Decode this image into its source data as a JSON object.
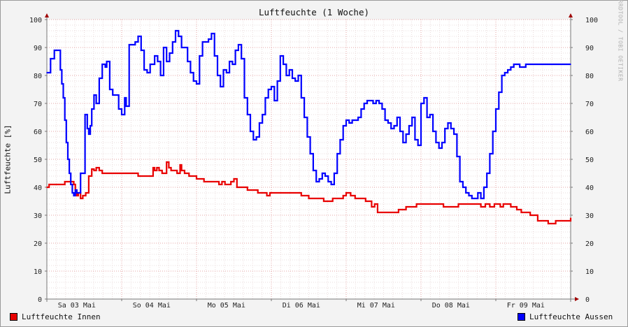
{
  "chart_data": {
    "type": "line",
    "title": "Luftfeuchte (1 Woche)",
    "ylabel": "Luftfeuchte [%]",
    "ylim": [
      0,
      100
    ],
    "yticks": [
      0,
      10,
      20,
      30,
      40,
      50,
      60,
      70,
      80,
      90,
      100
    ],
    "xlim": [
      0,
      7
    ],
    "x_unit": "days",
    "xtick_labels": [
      "Sa 03 Mai",
      "So 04 Mai",
      "Mo 05 Mai",
      "Di 06 Mai",
      "Mi 07 Mai",
      "Do 08 Mai",
      "Fr 09 Mai"
    ],
    "xtick_positions": [
      0.4,
      1.4,
      2.4,
      3.4,
      4.4,
      5.4,
      6.4
    ],
    "grid": true,
    "legend_position": "bottom",
    "watermark": "RRDTOOL / TOBI OETIKER",
    "series": [
      {
        "name": "Luftfeuchte Innen",
        "color": "#e80000",
        "x": [
          0,
          0.03,
          0.08,
          0.18,
          0.24,
          0.33,
          0.36,
          0.38,
          0.4,
          0.42,
          0.45,
          0.48,
          0.52,
          0.56,
          0.6,
          0.63,
          0.66,
          0.7,
          0.74,
          0.77,
          0.8,
          0.83,
          0.86,
          0.9,
          1,
          1.15,
          1.22,
          1.38,
          1.42,
          1.44,
          1.47,
          1.5,
          1.54,
          1.58,
          1.6,
          1.63,
          1.66,
          1.7,
          1.74,
          1.78,
          1.8,
          1.84,
          1.9,
          2,
          2.1,
          2.2,
          2.26,
          2.3,
          2.34,
          2.38,
          2.42,
          2.46,
          2.5,
          2.54,
          2.58,
          2.62,
          2.68,
          2.75,
          2.82,
          2.88,
          2.94,
          2.98,
          3.05,
          3.2,
          3.33,
          3.4,
          3.5,
          3.56,
          3.6,
          3.7,
          3.76,
          3.82,
          3.9,
          3.96,
          4,
          4.06,
          4.12,
          4.2,
          4.26,
          4.34,
          4.38,
          4.42,
          4.46,
          4.5,
          4.56,
          4.6,
          4.7,
          4.8,
          4.86,
          4.94,
          5.1,
          5.2,
          5.3,
          5.5,
          5.6,
          5.7,
          5.8,
          5.86,
          5.92,
          5.98,
          6.06,
          6.1,
          6.2,
          6.28,
          6.34,
          6.4,
          6.46,
          6.56,
          6.62,
          6.7,
          6.8,
          6.9,
          6.96,
          7
        ],
        "values": [
          40,
          41,
          41,
          41,
          42,
          42,
          41,
          39,
          37,
          38,
          36,
          37,
          38,
          44,
          46.5,
          46,
          47,
          46,
          45,
          45,
          45,
          45,
          45,
          45,
          45,
          45,
          44,
          44,
          47,
          46,
          47,
          46,
          45,
          45,
          49,
          47,
          46,
          46,
          45,
          48,
          46,
          45,
          44,
          43,
          42,
          42,
          42,
          41,
          42,
          41,
          41,
          42,
          43,
          40,
          40,
          40,
          39,
          39,
          38,
          38,
          37,
          38,
          38,
          38,
          38,
          37,
          36,
          36,
          36,
          35,
          35,
          36,
          36,
          37,
          38,
          37,
          36,
          36,
          35,
          33,
          34,
          31,
          31,
          31,
          31,
          31,
          32,
          33,
          33,
          34,
          34,
          34,
          33,
          34,
          34,
          34,
          33,
          34,
          33,
          34,
          33,
          34,
          33,
          32,
          31,
          31,
          30,
          28,
          28,
          27,
          28,
          28,
          28,
          29
        ]
      },
      {
        "name": "Luftfeuchte Aussen",
        "color": "#0000ff",
        "x": [
          0,
          0.05,
          0.1,
          0.14,
          0.18,
          0.2,
          0.22,
          0.24,
          0.26,
          0.28,
          0.3,
          0.32,
          0.34,
          0.36,
          0.38,
          0.4,
          0.42,
          0.45,
          0.48,
          0.51,
          0.54,
          0.56,
          0.58,
          0.6,
          0.63,
          0.66,
          0.7,
          0.74,
          0.78,
          0.8,
          0.84,
          0.88,
          0.92,
          0.96,
          1,
          1.04,
          1.06,
          1.1,
          1.14,
          1.18,
          1.22,
          1.26,
          1.3,
          1.34,
          1.38,
          1.4,
          1.44,
          1.48,
          1.52,
          1.56,
          1.6,
          1.64,
          1.68,
          1.72,
          1.76,
          1.8,
          1.84,
          1.88,
          1.92,
          1.96,
          2,
          2.04,
          2.08,
          2.12,
          2.16,
          2.2,
          2.24,
          2.28,
          2.32,
          2.36,
          2.4,
          2.44,
          2.48,
          2.52,
          2.56,
          2.6,
          2.64,
          2.68,
          2.72,
          2.76,
          2.8,
          2.84,
          2.88,
          2.92,
          2.96,
          3,
          3.04,
          3.08,
          3.12,
          3.16,
          3.2,
          3.24,
          3.28,
          3.32,
          3.36,
          3.4,
          3.44,
          3.48,
          3.52,
          3.56,
          3.6,
          3.64,
          3.68,
          3.72,
          3.76,
          3.8,
          3.84,
          3.88,
          3.92,
          3.96,
          4,
          4.04,
          4.08,
          4.12,
          4.16,
          4.2,
          4.24,
          4.28,
          4.32,
          4.36,
          4.4,
          4.44,
          4.48,
          4.52,
          4.56,
          4.6,
          4.64,
          4.68,
          4.72,
          4.76,
          4.8,
          4.84,
          4.88,
          4.92,
          4.96,
          5,
          5.04,
          5.08,
          5.12,
          5.16,
          5.2,
          5.24,
          5.28,
          5.32,
          5.36,
          5.4,
          5.44,
          5.48,
          5.52,
          5.56,
          5.6,
          5.64,
          5.68,
          5.72,
          5.76,
          5.8,
          5.84,
          5.88,
          5.92,
          5.96,
          6,
          6.04,
          6.08,
          6.12,
          6.16,
          6.2,
          6.24,
          6.28,
          6.32,
          6.36,
          6.4,
          6.44,
          6.48,
          6.52,
          6.56,
          6.6,
          6.64,
          6.68,
          6.72,
          6.76,
          6.8,
          6.84,
          6.88,
          6.92,
          6.96,
          7
        ],
        "values": [
          81,
          86,
          89,
          89,
          82,
          77,
          72,
          64,
          56,
          50,
          45,
          41,
          38,
          37,
          39,
          38,
          38,
          45,
          45,
          66,
          61,
          59,
          62,
          68,
          73,
          70,
          79,
          84,
          83,
          85,
          75,
          73,
          73,
          68,
          66,
          72,
          69,
          91,
          91,
          92,
          94,
          89,
          82,
          81,
          84,
          84,
          87,
          85,
          80,
          90,
          85,
          88,
          92,
          96,
          94,
          90,
          90,
          85,
          81,
          78,
          77,
          87,
          92,
          92,
          93,
          95,
          87,
          80,
          76,
          82,
          81,
          85,
          84,
          89,
          91,
          86,
          72,
          66,
          60,
          57,
          58,
          63,
          66,
          72,
          75,
          76,
          71,
          78,
          87,
          84,
          80,
          82,
          79,
          78,
          80,
          72,
          65,
          58,
          52,
          46,
          42,
          43,
          45,
          44,
          42,
          41,
          45,
          52,
          57,
          62,
          64,
          63,
          64,
          64,
          65,
          68,
          70,
          71,
          71,
          70,
          71,
          70,
          68,
          64,
          63,
          61,
          62,
          65,
          60,
          56,
          59,
          62,
          65,
          57,
          55,
          70,
          72,
          65,
          66,
          60,
          56,
          54,
          56,
          61,
          63,
          61,
          59,
          51,
          42,
          40,
          38,
          37,
          36,
          36,
          38,
          36,
          40,
          45,
          52,
          60,
          68,
          74,
          80,
          81,
          82,
          83,
          84,
          84,
          83,
          83,
          84,
          84,
          84,
          84,
          84,
          84,
          84,
          84,
          84,
          84,
          84,
          84,
          84,
          84,
          84,
          84
        ]
      }
    ]
  }
}
